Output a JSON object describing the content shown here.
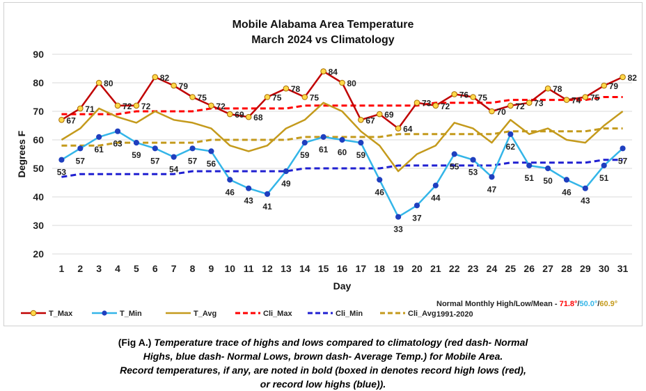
{
  "caption": {
    "label": "(Fig A.)",
    "line1": "Temperature trace of highs and lows compared to climatology (red dash- Normal",
    "line2": "Highs, blue dash- Normal Lows, brown dash- Average Temp.) for Mobile Area.",
    "line3": "Record temperatures, if any, are noted in bold (boxed in denotes record high lows (red),",
    "line4": "or record low highs (blue))."
  },
  "normals_note": {
    "prefix": "Normal Monthly High/Low/Mean - ",
    "high": "71.8°",
    "low": "50.0°",
    "mean": "60.9°",
    "sep": "/",
    "period": "1991-2020"
  },
  "chart_data": {
    "type": "line",
    "title": "Mobile Alabama Area Temperature",
    "subtitle": "March 2024 vs Climatology",
    "xlabel": "Day",
    "ylabel": "Degrees F",
    "ylim": [
      20,
      90
    ],
    "yticks": [
      20,
      30,
      40,
      50,
      60,
      70,
      80,
      90
    ],
    "grid": true,
    "legend_position": "bottom",
    "x": [
      1,
      2,
      3,
      4,
      5,
      6,
      7,
      8,
      9,
      10,
      11,
      12,
      13,
      14,
      15,
      16,
      17,
      18,
      19,
      20,
      21,
      22,
      23,
      24,
      25,
      26,
      27,
      28,
      29,
      30,
      31
    ],
    "series": [
      {
        "name": "T_Max",
        "color": "#c00000",
        "style": "solid",
        "marker": "circle-yellow",
        "values": [
          67,
          71,
          80,
          72,
          72,
          82,
          79,
          75,
          72,
          69,
          68,
          75,
          78,
          75,
          84,
          80,
          67,
          69,
          64,
          73,
          72,
          76,
          75,
          70,
          72,
          73,
          78,
          74,
          75,
          79,
          82
        ]
      },
      {
        "name": "T_Min",
        "color": "#33b5e8",
        "style": "solid",
        "marker": "circle-blue",
        "values": [
          53,
          57,
          61,
          63,
          59,
          57,
          54,
          57,
          56,
          46,
          43,
          41,
          49,
          59,
          61,
          60,
          59,
          46,
          33,
          37,
          44,
          55,
          53,
          47,
          62,
          51,
          50,
          46,
          43,
          51,
          57
        ]
      },
      {
        "name": "T_Avg",
        "color": "#c49a1c",
        "style": "solid",
        "marker": "none",
        "values": [
          60,
          64,
          71,
          68,
          66,
          70,
          67,
          66,
          64,
          58,
          56,
          58,
          64,
          67,
          73,
          70,
          63,
          58,
          49,
          55,
          58,
          66,
          64,
          59,
          67,
          62,
          64,
          60,
          59,
          65,
          70
        ]
      },
      {
        "name": "Cli_Max",
        "color": "#ff0000",
        "style": "dashed",
        "marker": "none",
        "values": [
          69,
          69,
          69,
          69,
          70,
          70,
          70,
          70,
          71,
          71,
          71,
          71,
          71,
          72,
          72,
          72,
          72,
          72,
          72,
          72,
          73,
          73,
          73,
          73,
          74,
          74,
          74,
          74,
          74,
          75,
          75
        ]
      },
      {
        "name": "Cli_Min",
        "color": "#1f1fd1",
        "style": "dashed",
        "marker": "none",
        "values": [
          47,
          48,
          48,
          48,
          48,
          48,
          48,
          49,
          49,
          49,
          49,
          49,
          49,
          50,
          50,
          50,
          50,
          50,
          51,
          51,
          51,
          51,
          51,
          51,
          52,
          52,
          52,
          52,
          52,
          53,
          53
        ]
      },
      {
        "name": "Cli_Avg",
        "color": "#c49a1c",
        "style": "dashed",
        "marker": "none",
        "values": [
          58,
          58,
          58,
          59,
          59,
          59,
          59,
          59,
          60,
          60,
          60,
          60,
          60,
          61,
          61,
          61,
          61,
          61,
          62,
          62,
          62,
          62,
          62,
          62,
          63,
          63,
          63,
          63,
          63,
          64,
          64
        ]
      }
    ],
    "max_labels": [
      "67",
      "71",
      "80",
      "72",
      "72",
      "82",
      "79",
      "75",
      "72",
      "69",
      "68",
      "75",
      "78",
      "75",
      "84",
      "80",
      "67",
      "69",
      "64",
      "73",
      "72",
      "76",
      "75",
      "70",
      "72",
      "73",
      "78",
      "74",
      "75",
      "79",
      "82"
    ],
    "min_labels": [
      "53",
      "57",
      "61",
      "63",
      "59",
      "57",
      "54",
      "57",
      "56",
      "46",
      "43",
      "41",
      "49",
      "59",
      "61",
      "60",
      "59",
      "46",
      "33",
      "37",
      "44",
      "55",
      "53",
      "47",
      "62",
      "51",
      "50",
      "46",
      "43",
      "51",
      "57"
    ]
  }
}
